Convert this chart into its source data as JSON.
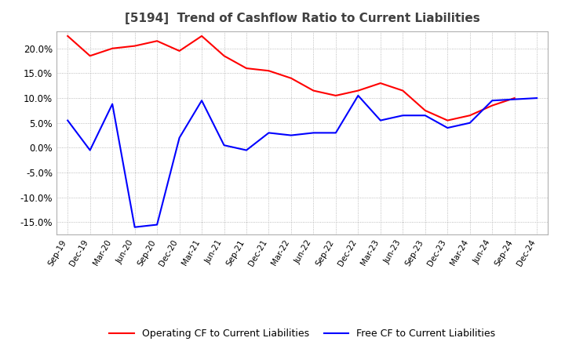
{
  "title": "[5194]  Trend of Cashflow Ratio to Current Liabilities",
  "title_color": "#404040",
  "background_color": "#ffffff",
  "plot_bg_color": "#ffffff",
  "grid_color": "#a0a0a0",
  "x_labels": [
    "Sep-19",
    "Dec-19",
    "Mar-20",
    "Jun-20",
    "Sep-20",
    "Dec-20",
    "Mar-21",
    "Jun-21",
    "Sep-21",
    "Dec-21",
    "Mar-22",
    "Jun-22",
    "Sep-22",
    "Dec-22",
    "Mar-23",
    "Jun-23",
    "Sep-23",
    "Dec-23",
    "Mar-24",
    "Jun-24",
    "Sep-24",
    "Dec-24"
  ],
  "operating_cf": [
    0.225,
    0.185,
    0.2,
    0.205,
    0.215,
    0.195,
    0.225,
    0.185,
    0.16,
    0.155,
    0.14,
    0.115,
    0.105,
    0.115,
    0.13,
    0.115,
    0.075,
    0.055,
    0.065,
    0.085,
    0.1,
    null
  ],
  "free_cf": [
    0.055,
    -0.005,
    0.088,
    -0.16,
    -0.155,
    0.02,
    0.095,
    0.005,
    -0.005,
    0.03,
    0.025,
    0.03,
    0.03,
    0.105,
    0.055,
    0.065,
    0.065,
    0.04,
    0.05,
    0.095,
    null,
    0.1
  ],
  "ylim": [
    -0.175,
    0.235
  ],
  "yticks": [
    -0.15,
    -0.1,
    -0.05,
    0.0,
    0.05,
    0.1,
    0.15,
    0.2
  ],
  "operating_color": "#ff0000",
  "free_color": "#0000ff",
  "legend_labels": [
    "Operating CF to Current Liabilities",
    "Free CF to Current Liabilities"
  ]
}
